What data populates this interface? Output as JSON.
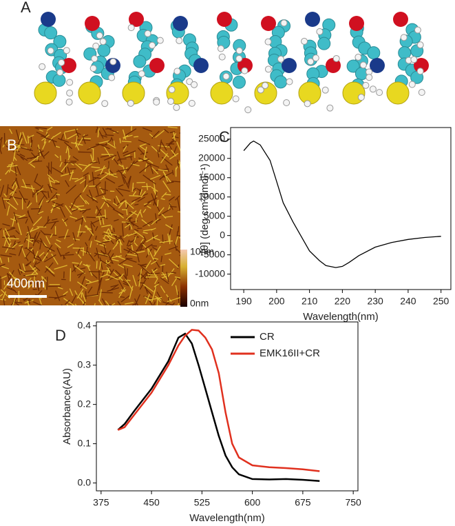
{
  "panel_labels": [
    "A",
    "B",
    "C",
    "D"
  ],
  "afm": {
    "scale_bar": "400nm",
    "colorbar_max": "10nm",
    "colorbar_min": "0nm"
  },
  "chart_data": [
    {
      "type": "line",
      "x_label": "Wavelength(nm)",
      "y_label": "[θ] (deg cm²dmol⁻¹)",
      "x": [
        190,
        192,
        193,
        195,
        198,
        200,
        202,
        205,
        208,
        210,
        213,
        215,
        218,
        220,
        222,
        225,
        230,
        235,
        240,
        245,
        250
      ],
      "values": [
        22000,
        24000,
        24500,
        23500,
        19500,
        14000,
        8500,
        3500,
        -1000,
        -4000,
        -6500,
        -7800,
        -8300,
        -8000,
        -7000,
        -5200,
        -3000,
        -1800,
        -1000,
        -500,
        -200
      ],
      "color": "#000000",
      "xlim": [
        186,
        253
      ],
      "xticks": [
        190,
        200,
        210,
        220,
        230,
        240,
        250
      ],
      "ylim": [
        -14000,
        28000
      ],
      "yticks": [
        -10000,
        -5000,
        0,
        5000,
        10000,
        15000,
        20000,
        25000
      ]
    },
    {
      "type": "line",
      "x_label": "Wavelength(nm)",
      "y_label": "Absorbance(AU)",
      "x": [
        400,
        410,
        425,
        450,
        475,
        490,
        500,
        510,
        520,
        530,
        540,
        550,
        560,
        570,
        580,
        600,
        625,
        650,
        675,
        700
      ],
      "series": [
        {
          "name": "CR",
          "color": "#000000",
          "values": [
            0.135,
            0.15,
            0.185,
            0.24,
            0.31,
            0.37,
            0.38,
            0.355,
            0.3,
            0.24,
            0.18,
            0.12,
            0.07,
            0.04,
            0.022,
            0.01,
            0.009,
            0.01,
            0.008,
            0.005
          ]
        },
        {
          "name": "EMK16II+CR",
          "color": "#e0301e",
          "values": [
            0.135,
            0.142,
            0.175,
            0.23,
            0.3,
            0.35,
            0.375,
            0.39,
            0.388,
            0.37,
            0.34,
            0.28,
            0.18,
            0.1,
            0.065,
            0.045,
            0.04,
            0.038,
            0.035,
            0.03
          ]
        }
      ],
      "xlim": [
        368,
        757
      ],
      "xticks": [
        375,
        450,
        525,
        600,
        675,
        750
      ],
      "ylim": [
        -0.02,
        0.41
      ],
      "yticks": [
        {
          "value": 0,
          "label": "0.0"
        },
        0.1,
        0.2,
        0.3,
        0.4
      ],
      "legend": "upper right"
    }
  ]
}
